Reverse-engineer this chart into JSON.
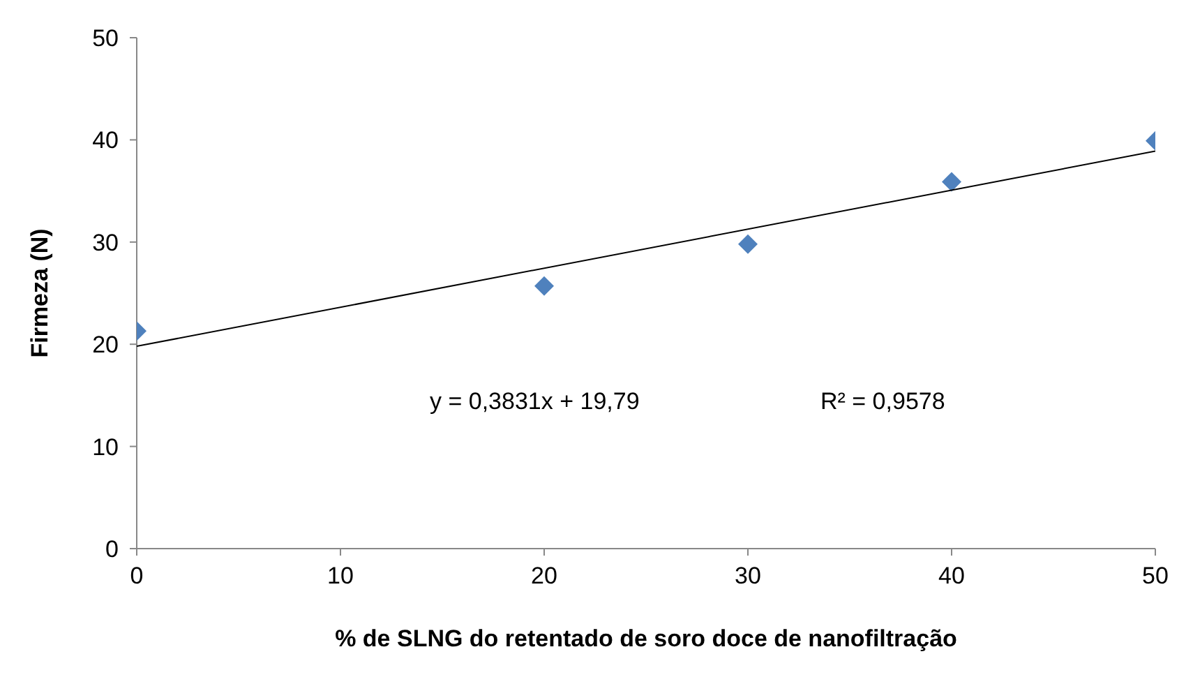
{
  "chart_data": {
    "type": "scatter",
    "xlabel": "% de SLNG do retentado de soro doce de nanofiltração",
    "ylabel": "Firmeza (N)",
    "x": [
      0,
      20,
      30,
      40,
      50
    ],
    "series": [
      {
        "color": "#4f81bd",
        "marker": "diamond",
        "values": [
          21.3,
          25.7,
          29.8,
          35.9,
          39.9
        ]
      },
      {
        "type": "line",
        "color": "#000000",
        "marker": "none",
        "x": [
          0,
          50
        ],
        "values": [
          19.8,
          38.9
        ]
      }
    ],
    "xlim": [
      0,
      50
    ],
    "xticks": [
      0,
      10,
      20,
      30,
      40,
      50
    ],
    "ylim": [
      0,
      50
    ],
    "yticks": [
      0,
      10,
      20,
      30,
      40,
      50
    ],
    "grid": false,
    "annotations": [
      "y = 0,3831x + 19,79",
      "R² = 0,9578"
    ]
  }
}
